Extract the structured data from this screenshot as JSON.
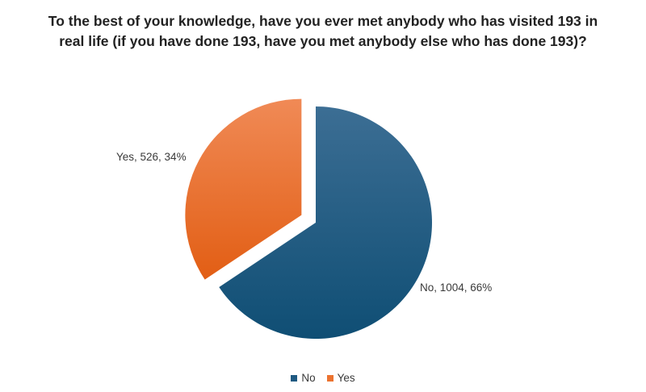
{
  "chart_data": {
    "type": "pie",
    "title": [
      "To the best of your knowledge, have you ever met anybody who has visited 193 in",
      "real life (if you have done 193, have you met anybody else who has done 193)?"
    ],
    "slices": [
      {
        "label": "No",
        "value": 1004,
        "percent": 66,
        "color": "#1f5a82",
        "data_label": "No, 1004, 66%",
        "exploded": false
      },
      {
        "label": "Yes",
        "value": 526,
        "percent": 34,
        "color": "#ec7330",
        "data_label": "Yes, 526, 34%",
        "exploded": true
      }
    ],
    "legend": {
      "position": "bottom",
      "items": [
        "No",
        "Yes"
      ]
    }
  }
}
